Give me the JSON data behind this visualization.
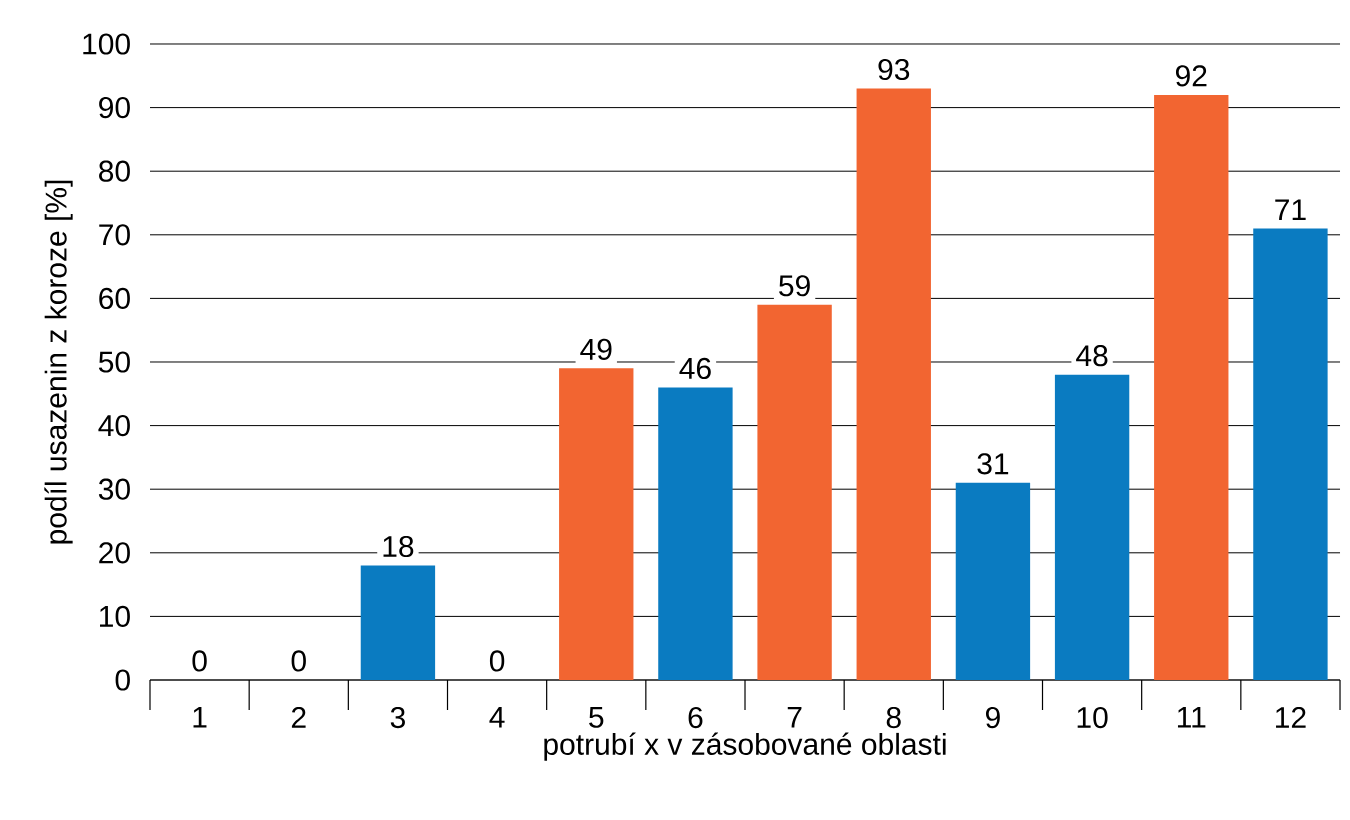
{
  "chart_data": {
    "type": "bar",
    "xlabel": "potrubí x v zásobované oblasti",
    "ylabel": "podíl usazenin z koroze [%]",
    "categories": [
      "1",
      "2",
      "3",
      "4",
      "5",
      "6",
      "7",
      "8",
      "9",
      "10",
      "11",
      "12"
    ],
    "values": [
      0,
      0,
      18,
      0,
      49,
      46,
      59,
      93,
      31,
      48,
      92,
      71
    ],
    "colors": [
      "#0a7bc1",
      "#0a7bc1",
      "#0a7bc1",
      "#0a7bc1",
      "#f26531",
      "#0a7bc1",
      "#f26531",
      "#f26531",
      "#0a7bc1",
      "#0a7bc1",
      "#f26531",
      "#0a7bc1"
    ],
    "ylim": [
      0,
      100
    ],
    "yticks": [
      0,
      10,
      20,
      30,
      40,
      50,
      60,
      70,
      80,
      90,
      100
    ],
    "grid": "y",
    "data_labels": true
  }
}
